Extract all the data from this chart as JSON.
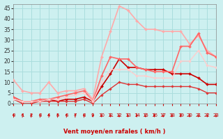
{
  "title": "",
  "xlabel": "Vent moyen/en rafales ( km/h )",
  "ylabel": "",
  "bg_color": "#cdf0f0",
  "grid_color": "#aadddd",
  "xlim": [
    0,
    23
  ],
  "ylim": [
    0,
    47
  ],
  "yticks": [
    0,
    5,
    10,
    15,
    20,
    25,
    30,
    35,
    40,
    45
  ],
  "xticks": [
    0,
    1,
    2,
    3,
    4,
    5,
    6,
    7,
    8,
    9,
    10,
    11,
    12,
    13,
    14,
    15,
    16,
    17,
    18,
    19,
    20,
    21,
    22,
    23
  ],
  "lines": [
    {
      "x": [
        0,
        1,
        2,
        3,
        4,
        5,
        6,
        7,
        8,
        9,
        10,
        11,
        12,
        13,
        14,
        15,
        16,
        17,
        18,
        19,
        20,
        21,
        22,
        23
      ],
      "y": [
        3,
        1,
        1,
        1,
        2,
        1,
        2,
        2,
        3,
        1,
        8,
        14,
        21,
        17,
        17,
        16,
        16,
        16,
        14,
        14,
        14,
        12,
        9,
        9
      ],
      "color": "#cc0000",
      "lw": 1.2,
      "marker": "D",
      "markersize": 2.0
    },
    {
      "x": [
        0,
        1,
        2,
        3,
        4,
        5,
        6,
        7,
        8,
        9,
        10,
        11,
        12,
        13,
        14,
        15,
        16,
        17,
        18,
        19,
        20,
        21,
        22,
        23
      ],
      "y": [
        2,
        0,
        0,
        1,
        1,
        1,
        1,
        1,
        2,
        0,
        4,
        7,
        10,
        9,
        9,
        8,
        8,
        8,
        8,
        8,
        8,
        7,
        5,
        5
      ],
      "color": "#dd3333",
      "lw": 1.0,
      "marker": "D",
      "markersize": 1.8
    },
    {
      "x": [
        0,
        1,
        2,
        3,
        4,
        5,
        6,
        7,
        8,
        9,
        10,
        11,
        12,
        13,
        14,
        15,
        16,
        17,
        18,
        19,
        20,
        21,
        22,
        23
      ],
      "y": [
        11,
        6,
        5,
        5,
        10,
        5,
        6,
        6,
        7,
        2,
        22,
        34,
        46,
        44,
        39,
        35,
        35,
        34,
        34,
        34,
        28,
        32,
        25,
        22
      ],
      "color": "#ffaaaa",
      "lw": 1.2,
      "marker": "D",
      "markersize": 2.0
    },
    {
      "x": [
        0,
        1,
        2,
        3,
        4,
        5,
        6,
        7,
        8,
        9,
        10,
        11,
        12,
        13,
        14,
        15,
        16,
        17,
        18,
        19,
        20,
        21,
        22,
        23
      ],
      "y": [
        3,
        1,
        1,
        2,
        2,
        3,
        4,
        5,
        6,
        1,
        13,
        22,
        21,
        21,
        17,
        16,
        15,
        15,
        15,
        27,
        27,
        33,
        24,
        22
      ],
      "color": "#ff6666",
      "lw": 1.2,
      "marker": "D",
      "markersize": 2.0
    },
    {
      "x": [
        0,
        1,
        2,
        3,
        4,
        5,
        6,
        7,
        8,
        9,
        10,
        11,
        12,
        13,
        14,
        15,
        16,
        17,
        18,
        19,
        20,
        21,
        22,
        23
      ],
      "y": [
        2,
        1,
        1,
        1,
        2,
        2,
        3,
        4,
        5,
        1,
        10,
        16,
        16,
        16,
        13,
        13,
        12,
        12,
        12,
        20,
        20,
        25,
        18,
        17
      ],
      "color": "#ffcccc",
      "lw": 1.0,
      "marker": "D",
      "markersize": 1.8
    }
  ],
  "arrow_color": "#cc0000",
  "arrow_up_indices": [
    0,
    1,
    2,
    3,
    4,
    5,
    6,
    7,
    8
  ],
  "arrow_down_indices": [
    9,
    10,
    11,
    12,
    13,
    14,
    15,
    16,
    17,
    18,
    19,
    20,
    21,
    22,
    23
  ]
}
